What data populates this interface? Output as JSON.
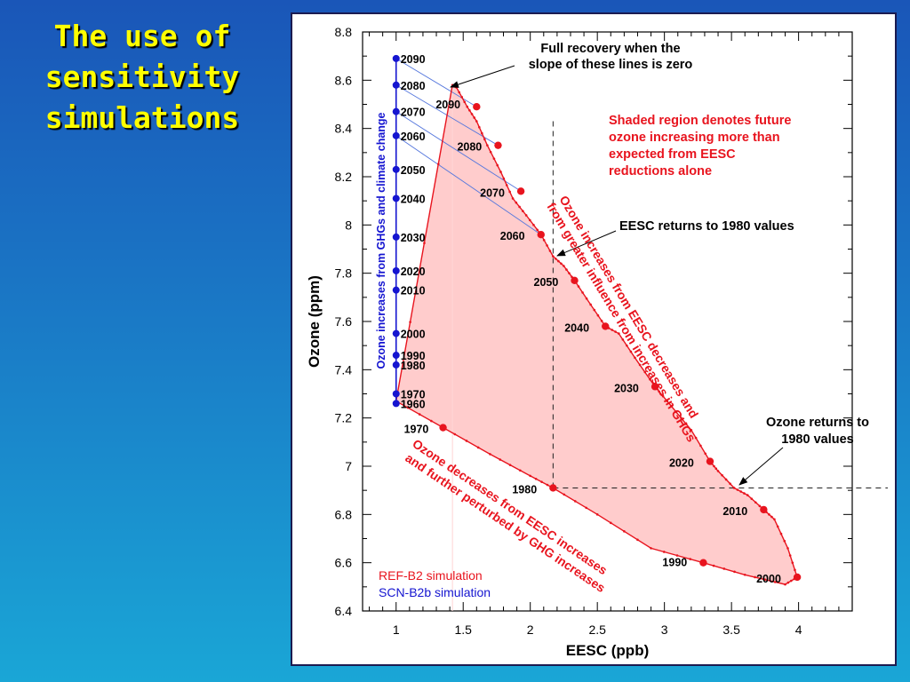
{
  "slide": {
    "title_lines": [
      "The use of",
      "sensitivity",
      "simulations"
    ]
  },
  "colors": {
    "red": "#e8141e",
    "blue": "#1515d0",
    "shade": "#ffcccc",
    "title": "#ffff00"
  },
  "chart_data": {
    "type": "line",
    "xlabel": "EESC (ppb)",
    "ylabel": "Ozone (ppm)",
    "xlim": [
      0.75,
      4.4
    ],
    "ylim": [
      6.4,
      8.8
    ],
    "x_ticks": [
      "1",
      "1.5",
      "2",
      "2.5",
      "3",
      "3.5",
      "4"
    ],
    "x_tick_values": [
      1,
      1.5,
      2,
      2.5,
      3,
      3.5,
      4
    ],
    "y_ticks": [
      "6.4",
      "6.6",
      "6.8",
      "7",
      "7.2",
      "7.4",
      "7.6",
      "7.8",
      "8",
      "8.2",
      "8.4",
      "8.6",
      "8.8"
    ],
    "y_tick_values": [
      6.4,
      6.6,
      6.8,
      7.0,
      7.2,
      7.4,
      7.6,
      7.8,
      8.0,
      8.2,
      8.4,
      8.6,
      8.8
    ],
    "legend": [
      "REF-B2 simulation",
      "SCN-B2b simulation"
    ],
    "series": [
      {
        "name": "REF-B2 simulation",
        "color": "#e8141e",
        "path": [
          [
            1.0,
            7.27
          ],
          [
            1.35,
            7.16
          ],
          [
            1.7,
            7.05
          ],
          [
            2.0,
            6.96
          ],
          [
            2.17,
            6.91
          ],
          [
            2.5,
            6.8
          ],
          [
            2.9,
            6.66
          ],
          [
            3.29,
            6.6
          ],
          [
            3.6,
            6.55
          ],
          [
            3.9,
            6.51
          ],
          [
            3.99,
            6.54
          ],
          [
            3.92,
            6.66
          ],
          [
            3.82,
            6.78
          ],
          [
            3.74,
            6.82
          ],
          [
            3.62,
            6.88
          ],
          [
            3.52,
            6.91
          ],
          [
            3.4,
            6.98
          ],
          [
            3.34,
            7.02
          ],
          [
            3.2,
            7.15
          ],
          [
            3.05,
            7.25
          ],
          [
            2.93,
            7.33
          ],
          [
            2.78,
            7.45
          ],
          [
            2.66,
            7.55
          ],
          [
            2.56,
            7.58
          ],
          [
            2.45,
            7.67
          ],
          [
            2.33,
            7.77
          ],
          [
            2.25,
            7.83
          ],
          [
            2.17,
            7.87
          ],
          [
            2.08,
            7.96
          ],
          [
            1.97,
            8.04
          ],
          [
            1.87,
            8.11
          ],
          [
            1.78,
            8.22
          ],
          [
            1.68,
            8.33
          ],
          [
            1.6,
            8.43
          ],
          [
            1.53,
            8.49
          ],
          [
            1.45,
            8.57
          ],
          [
            1.42,
            8.58
          ]
        ],
        "labeled_points": [
          {
            "year": "1970",
            "x": 1.35,
            "y": 7.16
          },
          {
            "year": "1980",
            "x": 2.17,
            "y": 6.91
          },
          {
            "year": "1990",
            "x": 3.29,
            "y": 6.6
          },
          {
            "year": "2000",
            "x": 3.99,
            "y": 6.54
          },
          {
            "year": "2010",
            "x": 3.74,
            "y": 6.82
          },
          {
            "year": "2020",
            "x": 3.34,
            "y": 7.02
          },
          {
            "year": "2030",
            "x": 2.93,
            "y": 7.33
          },
          {
            "year": "2040",
            "x": 2.56,
            "y": 7.58
          },
          {
            "year": "2050",
            "x": 2.33,
            "y": 7.77
          },
          {
            "year": "2060",
            "x": 2.08,
            "y": 7.96
          },
          {
            "year": "2070",
            "x": 1.93,
            "y": 8.14
          },
          {
            "year": "2080",
            "x": 1.76,
            "y": 8.33
          },
          {
            "year": "2090",
            "x": 1.6,
            "y": 8.49
          }
        ]
      },
      {
        "name": "SCN-B2b simulation",
        "color": "#1515d0",
        "x_constant": 1.0,
        "labeled_points": [
          {
            "year": "1960",
            "y": 7.26
          },
          {
            "year": "1970",
            "y": 7.3
          },
          {
            "year": "1980",
            "y": 7.42
          },
          {
            "year": "1990",
            "y": 7.46
          },
          {
            "year": "2000",
            "y": 7.55
          },
          {
            "year": "2010",
            "y": 7.73
          },
          {
            "year": "2020",
            "y": 7.81
          },
          {
            "year": "2030",
            "y": 7.95
          },
          {
            "year": "2040",
            "y": 8.11
          },
          {
            "year": "2050",
            "y": 8.23
          },
          {
            "year": "2060",
            "y": 8.37
          },
          {
            "year": "2070",
            "y": 8.47
          },
          {
            "year": "2080",
            "y": 8.58
          },
          {
            "year": "2090",
            "y": 8.69
          }
        ]
      }
    ],
    "connector_pairs": [
      {
        "year": "2090",
        "blue_y": 8.69,
        "red_x": 1.6,
        "red_y": 8.49
      },
      {
        "year": "2080",
        "blue_y": 8.58,
        "red_x": 1.76,
        "red_y": 8.33
      },
      {
        "year": "2070",
        "blue_y": 8.47,
        "red_x": 1.93,
        "red_y": 8.14
      },
      {
        "year": "2060",
        "blue_y": 8.37,
        "red_x": 2.08,
        "red_y": 7.96
      }
    ],
    "reference_lines": {
      "eesc_1980": 2.17,
      "ozone_1980": 6.91
    },
    "annotations": {
      "full_recovery": [
        "Full recovery when the",
        "slope of these lines is zero"
      ],
      "shaded_region": [
        "Shaded region denotes future",
        "ozone increasing more than",
        "expected from EESC",
        "reductions alone"
      ],
      "eesc_returns": "EESC returns to 1980 values",
      "ozone_returns": [
        "Ozone returns to",
        "1980 values"
      ],
      "ozone_increases_rotated": [
        "Ozone increases from EESC decreases and",
        "from greater influence from increases in GHGs"
      ],
      "ozone_decreases_rotated": [
        "Ozone decreases from EESC increases",
        "and further perturbed by GHG increases"
      ],
      "blue_axis_rotated": "Ozone increases from GHGs and climate change"
    }
  }
}
